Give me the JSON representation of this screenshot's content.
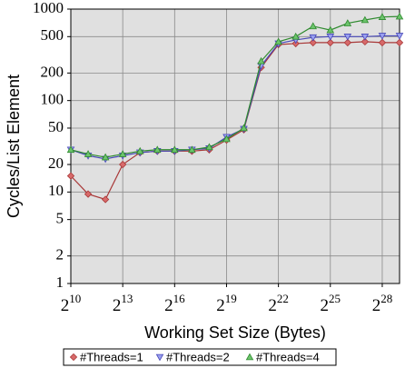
{
  "chart_data": {
    "type": "line",
    "x_label": "Working Set Size (Bytes)",
    "y_label": "Cycles/List Element",
    "xscale": "log2",
    "yscale": "log10",
    "grid": true,
    "legend": "bottom",
    "x": [
      1024,
      2048,
      4096,
      8192,
      16384,
      32768,
      65536,
      131072,
      262144,
      524288,
      1048576,
      2097152,
      4194304,
      8388608,
      16777216,
      33554432,
      67108864,
      134217728,
      268435456,
      536870912
    ],
    "xlim": [
      1024,
      536870912
    ],
    "xticks": [
      {
        "value": 1024,
        "label": "2",
        "sup": "10"
      },
      {
        "value": 8192,
        "label": "2",
        "sup": "13"
      },
      {
        "value": 65536,
        "label": "2",
        "sup": "16"
      },
      {
        "value": 524288,
        "label": "2",
        "sup": "19"
      },
      {
        "value": 4194304,
        "label": "2",
        "sup": "22"
      },
      {
        "value": 33554432,
        "label": "2",
        "sup": "25"
      },
      {
        "value": 268435456,
        "label": "2",
        "sup": "28"
      }
    ],
    "ylim": [
      1,
      1000
    ],
    "yticks": [
      1,
      2,
      5,
      10,
      20,
      50,
      100,
      200,
      500,
      1000
    ],
    "series": [
      {
        "name": "#Threads=1",
        "color": "#a83838",
        "marker_fill": "#d86a6a",
        "marker": "diamond",
        "values": [
          15,
          9.5,
          8.3,
          20,
          27,
          28,
          28,
          28,
          29,
          37,
          48,
          230,
          410,
          420,
          430,
          430,
          430,
          440,
          430,
          430
        ]
      },
      {
        "name": "#Threads=2",
        "color": "#4848b8",
        "marker_fill": "#9aa0f0",
        "marker": "triangle-down",
        "values": [
          29,
          25,
          23,
          25,
          27,
          28,
          28,
          29,
          30,
          40,
          49,
          240,
          420,
          460,
          490,
          500,
          500,
          500,
          510,
          510
        ]
      },
      {
        "name": "#Threads=4",
        "color": "#2f8a2f",
        "marker_fill": "#6cc46c",
        "marker": "triangle-up",
        "values": [
          29,
          26,
          24,
          26,
          28,
          29,
          29,
          29,
          31,
          38,
          50,
          270,
          440,
          500,
          650,
          590,
          700,
          760,
          820,
          830
        ]
      }
    ]
  }
}
